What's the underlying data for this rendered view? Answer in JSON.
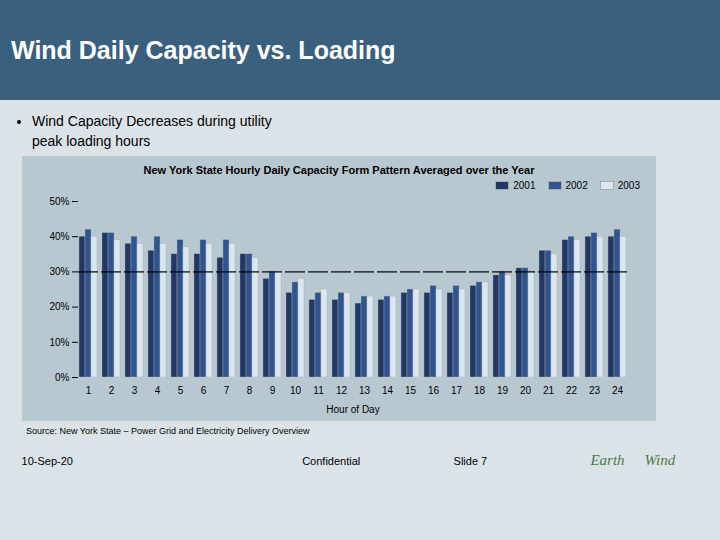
{
  "chart_data": {
    "type": "bar",
    "title": "Wind Daily Capacity vs. Loading",
    "subtitle": "Wind Capacity Decreases during utility\npeak loading hours",
    "annotations": [
      "New York State Hourly Daily Capacity Form Pattern Averaged over the Year",
      "Source: New York State – Power Grid and Electricity Delivery Overview",
      "10-Sep-20",
      "Confidential",
      "Slide 7",
      "Earth",
      "Wind"
    ],
    "xlabel": "Hour of Day",
    "categories": [
      "1",
      "2",
      "3",
      "4",
      "5",
      "6",
      "7",
      "8",
      "9",
      "10",
      "11",
      "12",
      "13",
      "14",
      "15",
      "16",
      "17",
      "18",
      "19",
      "20",
      "21",
      "22",
      "23",
      "24"
    ],
    "series": [
      {
        "name": "2001",
        "color": "#1f3864",
        "values": [
          0.4,
          0.41,
          0.38,
          0.36,
          0.35,
          0.35,
          0.34,
          0.35,
          0.28,
          0.24,
          0.22,
          0.22,
          0.21,
          0.22,
          0.24,
          0.24,
          0.24,
          0.26,
          0.29,
          0.31,
          0.36,
          0.39,
          0.4,
          0.4
        ]
      },
      {
        "name": "2002",
        "color": "#2e5591",
        "values": [
          0.42,
          0.41,
          0.4,
          0.4,
          0.39,
          0.39,
          0.39,
          0.35,
          0.3,
          0.27,
          0.24,
          0.24,
          0.23,
          0.23,
          0.25,
          0.26,
          0.26,
          0.27,
          0.3,
          0.31,
          0.36,
          0.4,
          0.41,
          0.42
        ]
      },
      {
        "name": "2003",
        "color": "#dce6f1",
        "values": [
          0.4,
          0.39,
          0.38,
          0.38,
          0.37,
          0.38,
          0.38,
          0.34,
          0.3,
          0.28,
          0.25,
          0.24,
          0.23,
          0.23,
          0.25,
          0.25,
          0.25,
          0.27,
          0.29,
          0.3,
          0.35,
          0.39,
          0.4,
          0.4
        ]
      }
    ],
    "ylim": [
      0,
      0.5
    ],
    "yticks": [
      {
        "value": 0.0,
        "label": "0%"
      },
      {
        "value": 0.1,
        "label": "10%"
      },
      {
        "value": 0.2,
        "label": "20%"
      },
      {
        "value": 0.3,
        "label": "30%"
      },
      {
        "value": 0.4,
        "label": "40%"
      },
      {
        "value": 0.5,
        "label": "50%"
      }
    ],
    "hlines": [
      0.3
    ],
    "grid": false,
    "legend": "upper right"
  }
}
